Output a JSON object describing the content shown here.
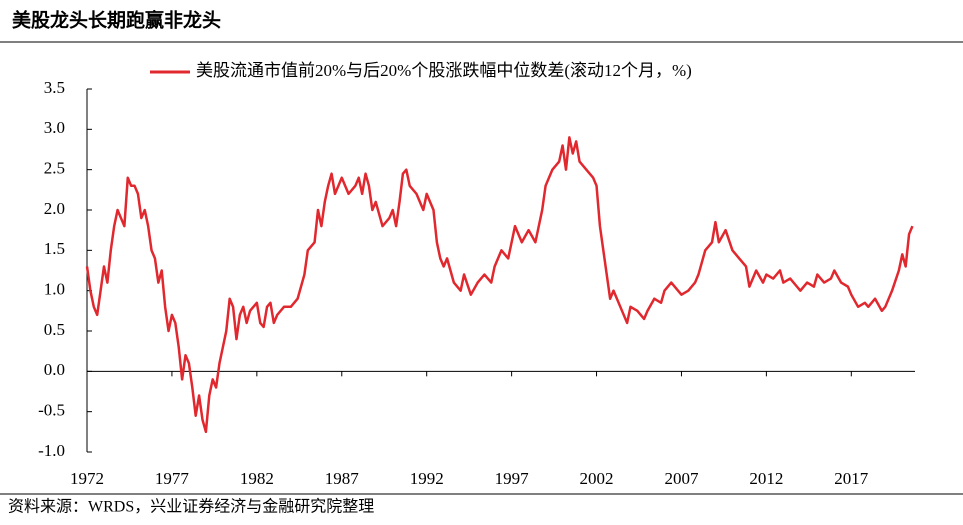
{
  "chart_data": {
    "type": "line",
    "title": "美股龙头长期跑赢非龙头",
    "source": "资料来源：WRDS，兴业证券经济与金融研究院整理",
    "legend": "top",
    "xlim": [
      1972,
      2020.75
    ],
    "xticks": [
      1972,
      1977,
      1982,
      1987,
      1992,
      1997,
      2002,
      2007,
      2012,
      2017
    ],
    "ylim": [
      -1,
      3.5
    ],
    "yticks": [
      {
        "value": -1,
        "label": "-1.0"
      },
      -0.5,
      {
        "value": 0,
        "label": "0.0"
      },
      0.5,
      {
        "value": 1,
        "label": "1.0"
      },
      1.5,
      {
        "value": 2,
        "label": "2.0"
      },
      2.5,
      {
        "value": 3,
        "label": "3.0"
      },
      3.5
    ],
    "grid": false,
    "x": [
      1972.0,
      1972.2,
      1972.4,
      1972.6,
      1972.8,
      1973.0,
      1973.2,
      1973.4,
      1973.6,
      1973.8,
      1974.0,
      1974.2,
      1974.4,
      1974.6,
      1974.8,
      1975.0,
      1975.2,
      1975.4,
      1975.6,
      1975.8,
      1976.0,
      1976.2,
      1976.4,
      1976.6,
      1976.8,
      1977.0,
      1977.2,
      1977.4,
      1977.6,
      1977.8,
      1978.0,
      1978.2,
      1978.4,
      1978.6,
      1978.8,
      1979.0,
      1979.2,
      1979.4,
      1979.6,
      1979.8,
      1980.0,
      1980.2,
      1980.4,
      1980.6,
      1980.8,
      1981.0,
      1981.2,
      1981.4,
      1981.6,
      1981.8,
      1982.0,
      1982.2,
      1982.4,
      1982.6,
      1982.8,
      1983.0,
      1983.2,
      1983.6,
      1984.0,
      1984.4,
      1984.8,
      1985.0,
      1985.4,
      1985.6,
      1985.8,
      1986.0,
      1986.2,
      1986.4,
      1986.6,
      1986.8,
      1987.0,
      1987.4,
      1987.8,
      1988.0,
      1988.2,
      1988.4,
      1988.6,
      1988.8,
      1989.0,
      1989.4,
      1989.8,
      1990.0,
      1990.2,
      1990.4,
      1990.6,
      1990.8,
      1991.0,
      1991.4,
      1991.8,
      1992.0,
      1992.4,
      1992.6,
      1992.8,
      1993.0,
      1993.2,
      1993.6,
      1994.0,
      1994.2,
      1994.6,
      1995.0,
      1995.4,
      1995.8,
      1996.0,
      1996.4,
      1996.8,
      1997.0,
      1997.2,
      1997.6,
      1998.0,
      1998.4,
      1998.8,
      1999.0,
      1999.4,
      1999.8,
      2000.0,
      2000.2,
      2000.4,
      2000.6,
      2000.8,
      2001.0,
      2001.4,
      2001.8,
      2002.0,
      2002.2,
      2002.4,
      2002.6,
      2002.8,
      2003.0,
      2003.4,
      2003.8,
      2004.0,
      2004.4,
      2004.8,
      2005.0,
      2005.4,
      2005.8,
      2006.0,
      2006.4,
      2006.8,
      2007.0,
      2007.4,
      2007.8,
      2008.0,
      2008.4,
      2008.8,
      2009.0,
      2009.2,
      2009.6,
      2010.0,
      2010.4,
      2010.8,
      2011.0,
      2011.4,
      2011.8,
      2012.0,
      2012.4,
      2012.8,
      2013.0,
      2013.4,
      2013.8,
      2014.0,
      2014.4,
      2014.8,
      2015.0,
      2015.4,
      2015.8,
      2016.0,
      2016.4,
      2016.8,
      2017.0,
      2017.4,
      2017.8,
      2018.0,
      2018.4,
      2018.8,
      2019.0,
      2019.4,
      2019.8,
      2020.0,
      2020.2,
      2020.4,
      2020.6
    ],
    "series": [
      {
        "name": "美股流通市值前20%与后20%个股涨跌幅中位数差(滚动12个月，%)",
        "color": "#e0282e",
        "values": [
          1.3,
          1.0,
          0.8,
          0.7,
          1.0,
          1.3,
          1.1,
          1.5,
          1.8,
          2.0,
          1.9,
          1.8,
          2.4,
          2.3,
          2.3,
          2.2,
          1.9,
          2.0,
          1.8,
          1.5,
          1.4,
          1.1,
          1.25,
          0.8,
          0.5,
          0.7,
          0.6,
          0.3,
          -0.1,
          0.2,
          0.1,
          -0.2,
          -0.55,
          -0.3,
          -0.6,
          -0.75,
          -0.3,
          -0.1,
          -0.2,
          0.1,
          0.3,
          0.5,
          0.9,
          0.8,
          0.4,
          0.7,
          0.8,
          0.6,
          0.75,
          0.8,
          0.85,
          0.6,
          0.55,
          0.8,
          0.85,
          0.6,
          0.7,
          0.8,
          0.8,
          0.9,
          1.2,
          1.5,
          1.6,
          2.0,
          1.8,
          2.1,
          2.3,
          2.45,
          2.2,
          2.3,
          2.4,
          2.2,
          2.3,
          2.4,
          2.2,
          2.45,
          2.3,
          2.0,
          2.1,
          1.8,
          1.9,
          2.0,
          1.8,
          2.1,
          2.45,
          2.5,
          2.3,
          2.2,
          2.0,
          2.2,
          2.0,
          1.6,
          1.4,
          1.3,
          1.4,
          1.1,
          1.0,
          1.2,
          0.95,
          1.1,
          1.2,
          1.1,
          1.3,
          1.5,
          1.4,
          1.6,
          1.8,
          1.6,
          1.75,
          1.6,
          2.0,
          2.3,
          2.5,
          2.6,
          2.8,
          2.5,
          2.9,
          2.7,
          2.85,
          2.6,
          2.5,
          2.4,
          2.3,
          1.8,
          1.5,
          1.2,
          0.9,
          1.0,
          0.8,
          0.6,
          0.8,
          0.75,
          0.65,
          0.75,
          0.9,
          0.85,
          1.0,
          1.1,
          1.0,
          0.95,
          1.0,
          1.1,
          1.2,
          1.5,
          1.6,
          1.85,
          1.6,
          1.75,
          1.5,
          1.4,
          1.3,
          1.05,
          1.25,
          1.1,
          1.2,
          1.15,
          1.25,
          1.1,
          1.15,
          1.05,
          1.0,
          1.1,
          1.05,
          1.2,
          1.1,
          1.15,
          1.25,
          1.1,
          1.05,
          0.95,
          0.8,
          0.85,
          0.8,
          0.9,
          0.75,
          0.8,
          1.0,
          1.25,
          1.45,
          1.3,
          1.7,
          1.8
        ]
      }
    ]
  }
}
